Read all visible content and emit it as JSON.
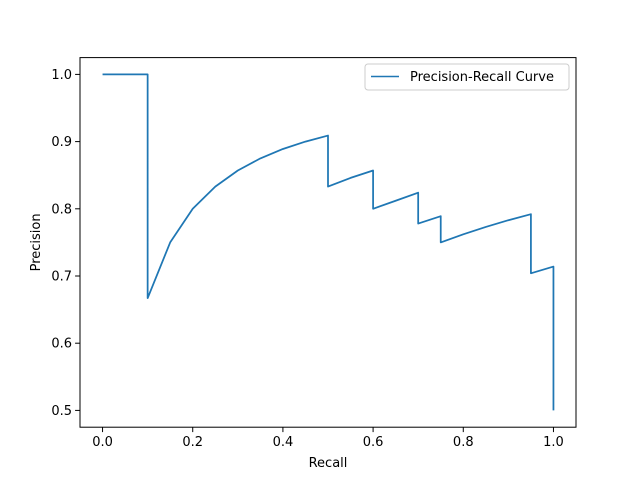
{
  "chart_data": {
    "type": "line",
    "xlabel": "Recall",
    "ylabel": "Precision",
    "xlim": [
      -0.05,
      1.05
    ],
    "ylim": [
      0.475,
      1.025
    ],
    "xticks": [
      0.0,
      0.2,
      0.4,
      0.6,
      0.8,
      1.0
    ],
    "xtick_labels": [
      "0.0",
      "0.2",
      "0.4",
      "0.6",
      "0.8",
      "1.0"
    ],
    "yticks": [
      0.5,
      0.6,
      0.7,
      0.8,
      0.9,
      1.0
    ],
    "ytick_labels": [
      "0.5",
      "0.6",
      "0.7",
      "0.8",
      "0.9",
      "1.0"
    ],
    "grid": false,
    "legend_position": "top-right",
    "series": [
      {
        "name": "Precision-Recall Curve",
        "color": "#1f77b4",
        "x": [
          0.0,
          0.1,
          0.1,
          0.15,
          0.2,
          0.25,
          0.3,
          0.35,
          0.4,
          0.45,
          0.5,
          0.5,
          0.55,
          0.6,
          0.6,
          0.65,
          0.7,
          0.7,
          0.75,
          0.75,
          0.8,
          0.85,
          0.9,
          0.95,
          0.95,
          1.0,
          1.0
        ],
        "y": [
          1.0,
          1.0,
          0.667,
          0.75,
          0.8,
          0.833,
          0.857,
          0.875,
          0.889,
          0.9,
          0.909,
          0.833,
          0.846,
          0.857,
          0.8,
          0.812,
          0.824,
          0.778,
          0.789,
          0.75,
          0.762,
          0.773,
          0.783,
          0.792,
          0.704,
          0.714,
          0.5
        ]
      }
    ]
  }
}
